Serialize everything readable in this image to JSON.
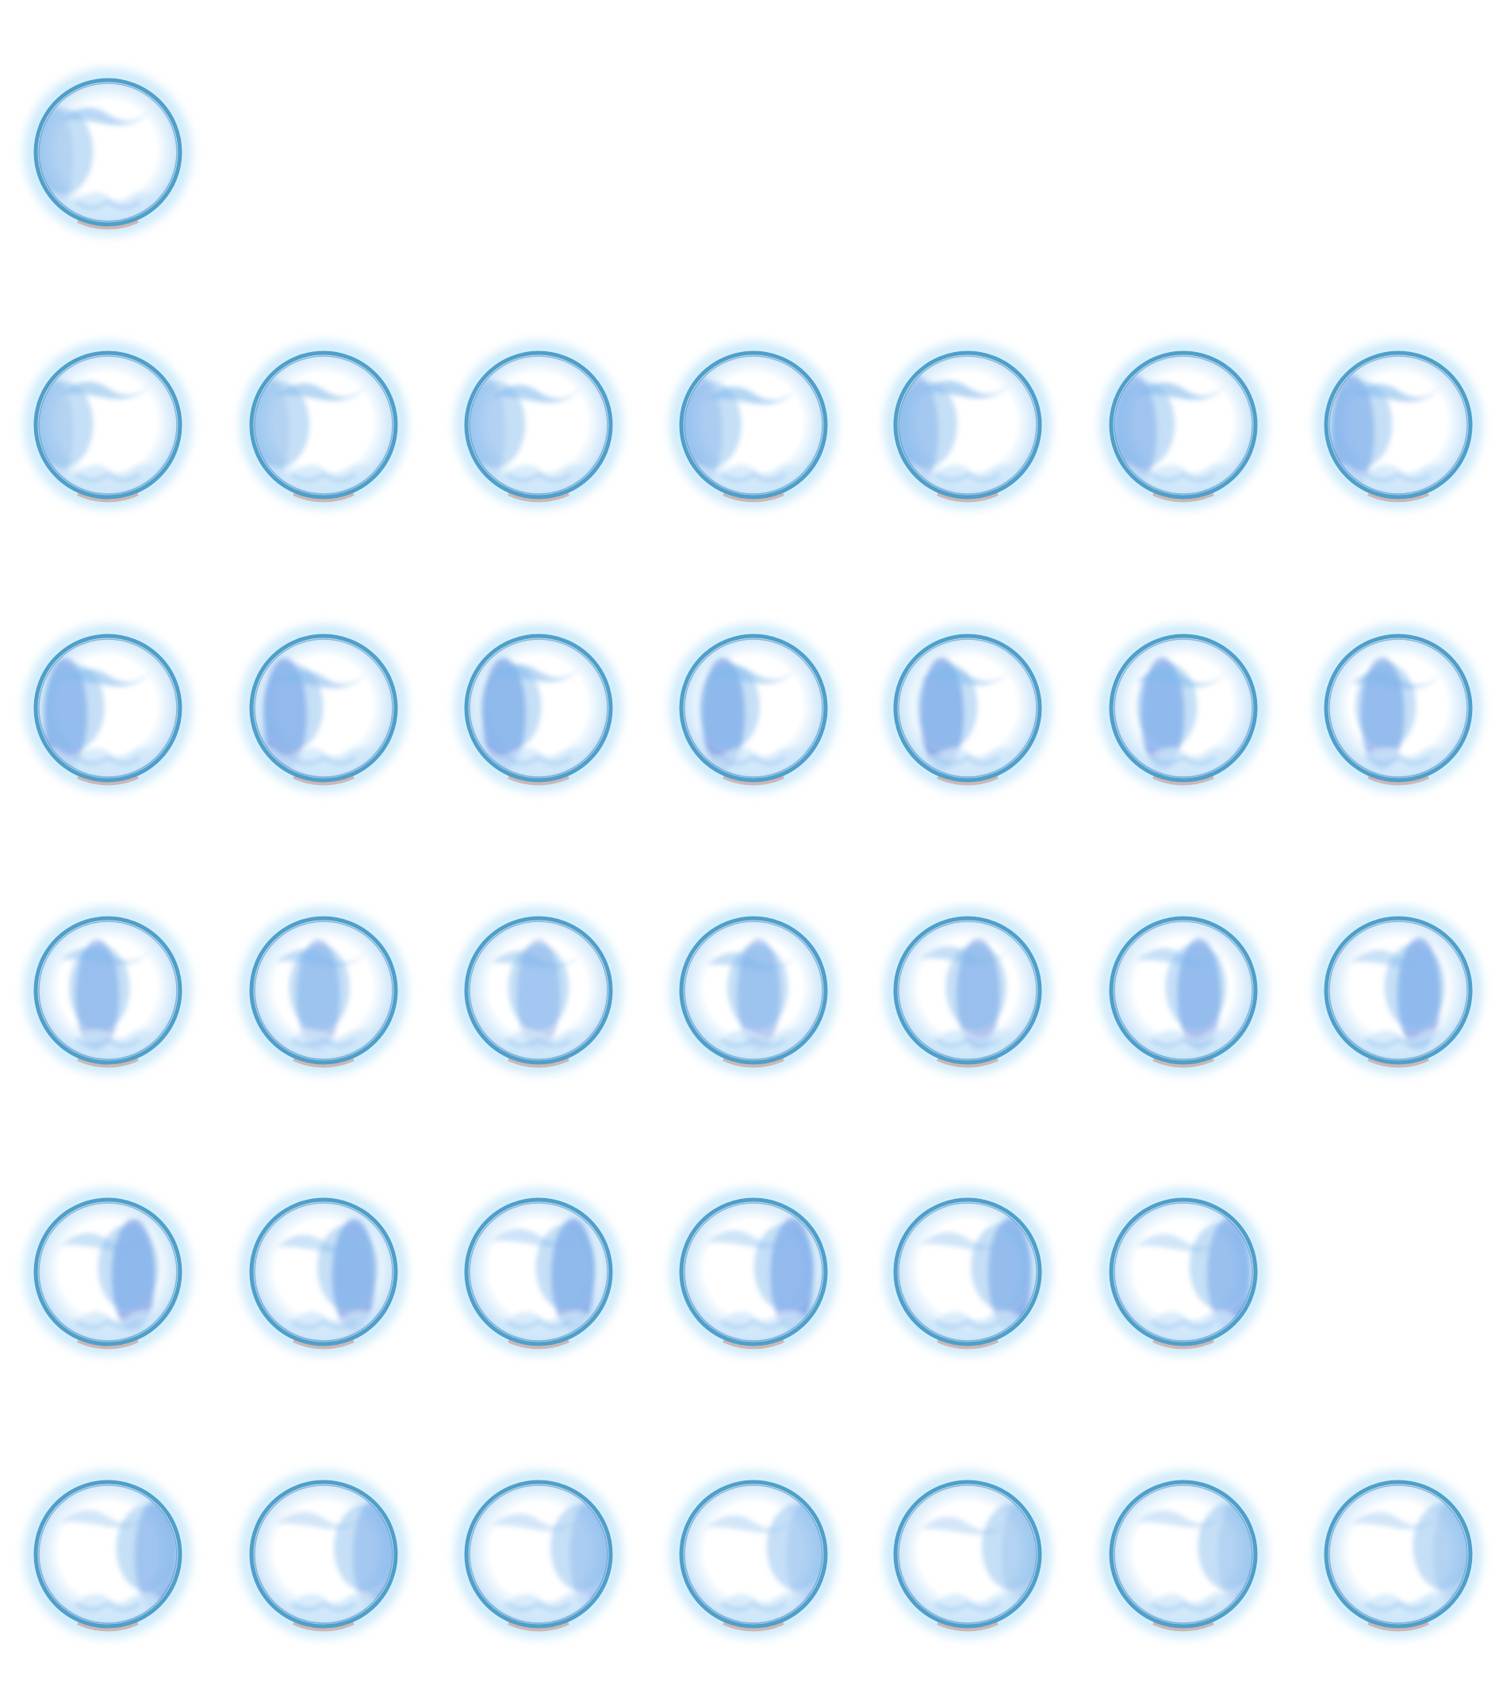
{
  "sprite_sheet": {
    "description_kind": "animation-frames",
    "frame_kind": "blue-bubble-orb",
    "colors": {
      "background": "#ffffff",
      "rim": "#4f9fca",
      "rim_dark": "#3e86b4",
      "glow": "#8fd0f5",
      "swirl_light": "#cfe7fa",
      "swirl_mid": "#7fb8ec",
      "swirl_dark": "#1f5fd6",
      "bottom_tint": "#c9a9a2"
    },
    "rows": [
      {
        "frames": [
          {
            "phase": 0.0
          }
        ]
      },
      {
        "frames": [
          {
            "phase": 0.02
          },
          {
            "phase": 0.05
          },
          {
            "phase": 0.08
          },
          {
            "phase": 0.11
          },
          {
            "phase": 0.14
          },
          {
            "phase": 0.17
          },
          {
            "phase": 0.2
          }
        ]
      },
      {
        "frames": [
          {
            "phase": 0.23
          },
          {
            "phase": 0.26
          },
          {
            "phase": 0.29
          },
          {
            "phase": 0.32
          },
          {
            "phase": 0.35
          },
          {
            "phase": 0.38
          },
          {
            "phase": 0.41
          }
        ]
      },
      {
        "frames": [
          {
            "phase": 0.44
          },
          {
            "phase": 0.47
          },
          {
            "phase": 0.5
          },
          {
            "phase": 0.53
          },
          {
            "phase": 0.56
          },
          {
            "phase": 0.59
          },
          {
            "phase": 0.62
          }
        ]
      },
      {
        "frames": [
          {
            "phase": 0.65
          },
          {
            "phase": 0.68
          },
          {
            "phase": 0.71
          },
          {
            "phase": 0.74
          },
          {
            "phase": 0.77
          },
          {
            "phase": 0.8
          }
        ]
      },
      {
        "frames": [
          {
            "phase": 0.83
          },
          {
            "phase": 0.86
          },
          {
            "phase": 0.89
          },
          {
            "phase": 0.92
          },
          {
            "phase": 0.95
          },
          {
            "phase": 0.97
          },
          {
            "phase": 1.0
          }
        ]
      }
    ]
  }
}
